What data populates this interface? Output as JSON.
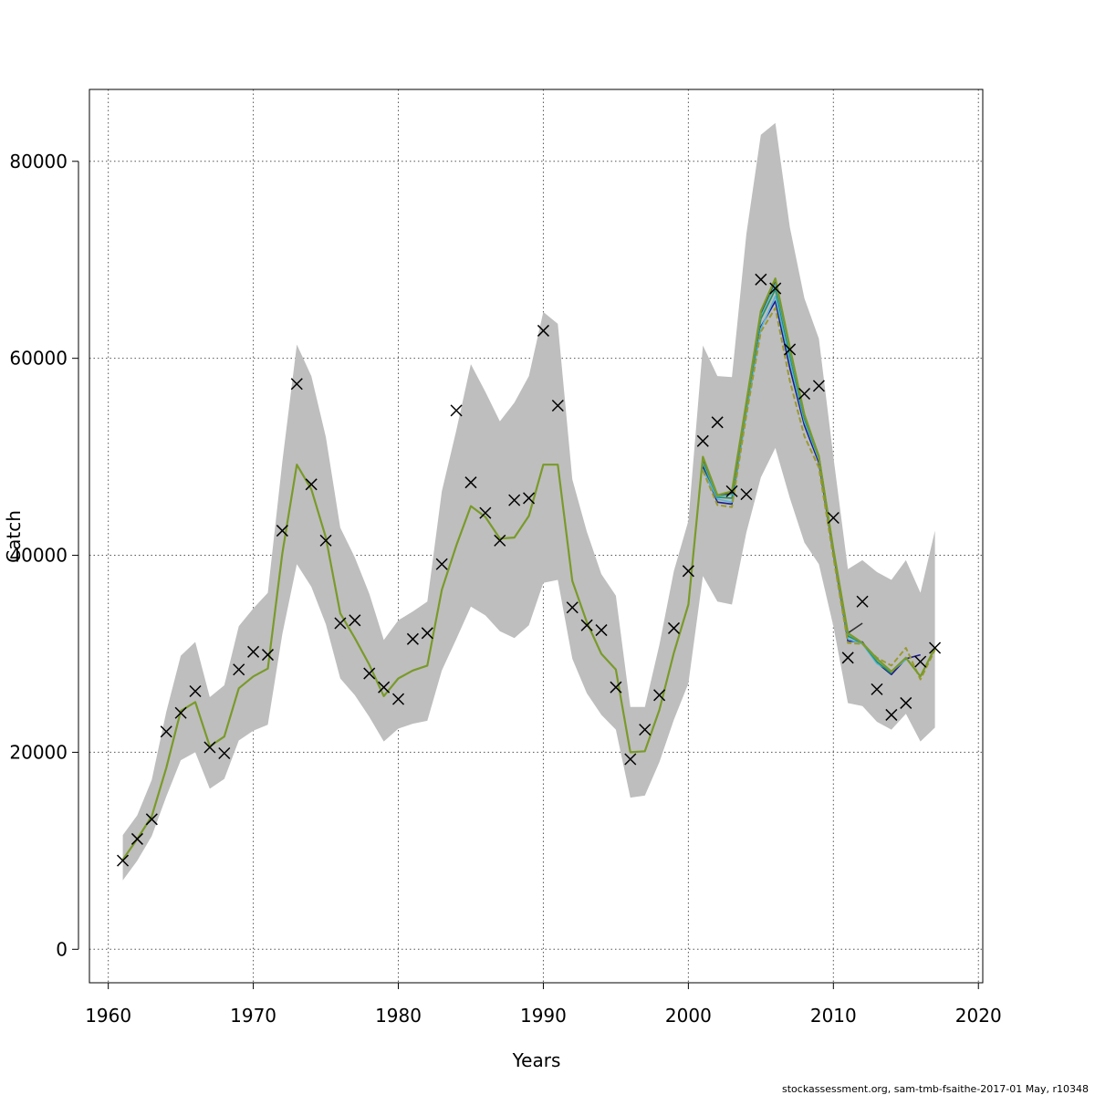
{
  "chart_data": {
    "type": "line",
    "title": "",
    "xlabel": "Years",
    "ylabel": "Catch",
    "xlim": [
      1958.7,
      2020.3
    ],
    "ylim": [
      -3400,
      87300
    ],
    "xticks": [
      1960,
      1970,
      1980,
      1990,
      2000,
      2010,
      2020
    ],
    "xtick_labels": [
      "1960",
      "1970",
      "1980",
      "1990",
      "2000",
      "2010",
      "2020"
    ],
    "yticks": [
      0,
      20000,
      40000,
      60000,
      80000
    ],
    "ytick_labels": [
      "0",
      "20000",
      "40000",
      "60000",
      "80000"
    ],
    "grid": true,
    "colors": {
      "band": "#bebebe",
      "fit": "#7a9a2a",
      "observed": "#000000",
      "retro": [
        "#1a1a8c",
        "#5ab4d6",
        "#1e8f6a",
        "#4fb3c4",
        "#333333",
        "#9a9a30"
      ]
    },
    "band": {
      "name": "confidence interval",
      "x": [
        1961,
        1962,
        1963,
        1964,
        1965,
        1966,
        1967,
        1968,
        1969,
        1970,
        1971,
        1972,
        1973,
        1974,
        1975,
        1976,
        1977,
        1978,
        1979,
        1980,
        1981,
        1982,
        1983,
        1984,
        1985,
        1986,
        1987,
        1988,
        1989,
        1990,
        1991,
        1992,
        1993,
        1994,
        1995,
        1996,
        1997,
        1998,
        1999,
        2000,
        2001,
        2002,
        2003,
        2004,
        2005,
        2006,
        2007,
        2008,
        2009,
        2010,
        2011,
        2012,
        2013,
        2014,
        2015,
        2016,
        2017
      ],
      "lower": [
        7000,
        9000,
        11500,
        15500,
        19200,
        20000,
        16300,
        17300,
        21200,
        22200,
        22800,
        32000,
        39100,
        36800,
        33000,
        27500,
        25800,
        23600,
        21100,
        22400,
        22900,
        23200,
        28300,
        31500,
        34800,
        33900,
        32300,
        31600,
        32900,
        37200,
        37500,
        29500,
        26000,
        23800,
        22300,
        15400,
        15600,
        19000,
        23300,
        27000,
        37900,
        35300,
        35000,
        42300,
        47900,
        50900,
        45800,
        41300,
        39100,
        32800,
        25000,
        24700,
        23100,
        22300,
        23900,
        21100,
        22500
      ],
      "upper": [
        11600,
        13600,
        17200,
        24100,
        29800,
        31200,
        25600,
        26800,
        32800,
        34600,
        36200,
        49500,
        61400,
        58200,
        52000,
        42800,
        39800,
        36100,
        31400,
        33400,
        34300,
        35300,
        46500,
        52700,
        59400,
        56600,
        53600,
        55500,
        58200,
        64700,
        63500,
        47700,
        42400,
        38100,
        35900,
        24600,
        24600,
        30900,
        38400,
        43500,
        61300,
        58200,
        58100,
        72600,
        82700,
        83900,
        73300,
        66100,
        62000,
        50000,
        38600,
        39500,
        38300,
        37500,
        39500,
        36200,
        42500
      ]
    },
    "series": [
      {
        "x": [
          1961,
          1962,
          1963,
          1964,
          1965,
          1966,
          1967,
          1968,
          1969,
          1970,
          1971,
          1972,
          1973,
          1974,
          1975,
          1976,
          1977,
          1978,
          1979,
          1980,
          1981,
          1982,
          1983,
          1984,
          1985,
          1986,
          1987,
          1988,
          1989,
          1990,
          1991,
          1992,
          1993,
          1994,
          1995,
          1996,
          1997,
          1998,
          1999,
          2000,
          2001,
          2002,
          2003,
          2004,
          2005,
          2006,
          2007,
          2008,
          2009,
          2010,
          2011,
          2012,
          2013,
          2014,
          2015,
          2016,
          2017
        ],
        "y": [
          9100,
          11200,
          13500,
          18400,
          24200,
          25100,
          20600,
          21600,
          26500,
          27700,
          28500,
          40200,
          49200,
          46700,
          41800,
          34100,
          31600,
          28900,
          25700,
          27500,
          28300,
          28800,
          36500,
          41000,
          45000,
          43900,
          41700,
          41800,
          44000,
          49200,
          49200,
          37400,
          33200,
          30000,
          28400,
          20000,
          20100,
          24300,
          30100,
          35000,
          50000,
          46100,
          46500,
          55500,
          64800,
          68100,
          61100,
          54300,
          50000,
          40600,
          32100,
          31100,
          29500,
          28200,
          29600,
          27700,
          30600
        ]
      },
      {
        "x": [
          2001,
          2002,
          2003,
          2004,
          2005,
          2006,
          2007,
          2008,
          2009,
          2010,
          2011,
          2012,
          2013,
          2014,
          2015,
          2016
        ],
        "y": [
          49000,
          45400,
          45200,
          54600,
          63200,
          65800,
          59000,
          53200,
          49400,
          40200,
          31300,
          31200,
          29100,
          27900,
          29500,
          29900
        ]
      },
      {
        "x": [
          2001,
          2002,
          2003,
          2004,
          2005,
          2006,
          2007,
          2008,
          2009,
          2010,
          2011,
          2012,
          2013,
          2014,
          2015
        ],
        "y": [
          48700,
          45700,
          45400,
          54400,
          63000,
          66300,
          59700,
          53600,
          49700,
          40400,
          31500,
          31000,
          29000,
          28200,
          29400
        ]
      },
      {
        "x": [
          2001,
          2002,
          2003,
          2004,
          2005,
          2006,
          2007,
          2008,
          2009,
          2010,
          2011,
          2012,
          2013,
          2014
        ],
        "y": [
          49300,
          45900,
          45800,
          55000,
          64000,
          67000,
          60300,
          53900,
          49900,
          40500,
          31800,
          31100,
          29200,
          28000
        ]
      },
      {
        "x": [
          2001,
          2002,
          2003,
          2004,
          2005,
          2006,
          2007,
          2008,
          2009,
          2010,
          2011,
          2012,
          2013
        ],
        "y": [
          49500,
          46000,
          46200,
          55200,
          64400,
          67500,
          60700,
          54100,
          50000,
          40500,
          32000,
          31100,
          29400
        ]
      },
      {
        "x": [
          2001,
          2002,
          2003,
          2004,
          2005,
          2006,
          2007,
          2008,
          2009,
          2010,
          2011,
          2012
        ],
        "y": [
          49800,
          46100,
          46300,
          55400,
          64600,
          67900,
          61000,
          54200,
          50100,
          40600,
          32100,
          33100
        ]
      },
      {
        "x": [
          2001,
          2002,
          2003,
          2004,
          2005,
          2006,
          2007,
          2008,
          2009,
          2010,
          2011,
          2012,
          2013,
          2014,
          2015,
          2016,
          2017
        ],
        "y": [
          48600,
          45100,
          44900,
          54200,
          62700,
          65100,
          57700,
          52100,
          48900,
          39800,
          31100,
          31000,
          29600,
          28800,
          30600,
          27400,
          30400
        ]
      }
    ],
    "observed": {
      "marker": "x",
      "x": [
        1961,
        1962,
        1963,
        1964,
        1965,
        1966,
        1967,
        1968,
        1969,
        1970,
        1971,
        1972,
        1973,
        1974,
        1975,
        1976,
        1977,
        1978,
        1979,
        1980,
        1981,
        1982,
        1983,
        1984,
        1985,
        1986,
        1987,
        1988,
        1989,
        1990,
        1991,
        1992,
        1993,
        1994,
        1995,
        1996,
        1997,
        1998,
        1999,
        2000,
        2001,
        2002,
        2003,
        2004,
        2005,
        2006,
        2007,
        2008,
        2009,
        2010,
        2011,
        2012,
        2013,
        2014,
        2015,
        2016,
        2017
      ],
      "y": [
        9000,
        11200,
        13200,
        22100,
        24000,
        26200,
        20500,
        19900,
        28400,
        30200,
        29900,
        42500,
        57400,
        47200,
        41500,
        33100,
        33400,
        28000,
        26600,
        25400,
        31500,
        32100,
        39100,
        54700,
        47400,
        44300,
        41500,
        45600,
        45800,
        62800,
        55200,
        34700,
        32900,
        32400,
        26600,
        19300,
        22300,
        25800,
        32600,
        38400,
        51600,
        53500,
        46500,
        46200,
        68000,
        67100,
        60900,
        56400,
        57200,
        43800,
        29600,
        35300,
        26400,
        23800,
        25000,
        29200,
        30600
      ]
    }
  },
  "footer": "stockassessment.org, sam-tmb-fsaithe-2017-01  May, r10348"
}
